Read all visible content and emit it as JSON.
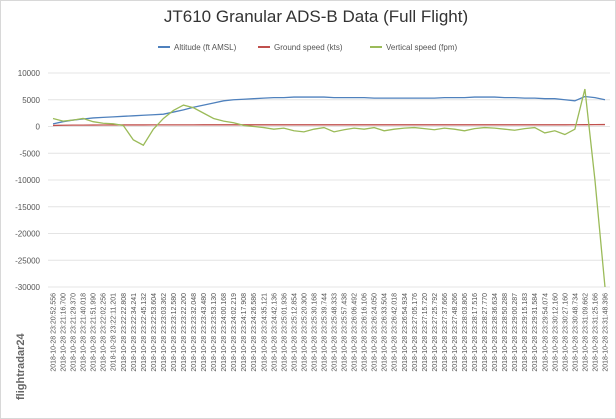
{
  "chart_data": {
    "type": "line",
    "title": "JT610 Granular ADS-B Data (Full Flight)",
    "watermark": "flightradar24",
    "categories": [
      "2018-10-28 23:20:52.556",
      "2018-10-28 23:21:16.700",
      "2018-10-28 23:21:29.370",
      "2018-10-28 23:21:40.018",
      "2018-10-28 23:21:51.990",
      "2018-10-28 23:22:02.256",
      "2018-10-28 23:22:11.201",
      "2018-10-28 23:22:22.808",
      "2018-10-28 23:22:34.241",
      "2018-10-28 23:22:45.132",
      "2018-10-28 23:22:53.604",
      "2018-10-28 23:23:03.362",
      "2018-10-28 23:23:12.580",
      "2018-10-28 23:23:22.200",
      "2018-10-28 23:23:32.048",
      "2018-10-28 23:23:43.480",
      "2018-10-28 23:23:53.130",
      "2018-10-28 23:24:00.168",
      "2018-10-28 23:24:02.219",
      "2018-10-28 23:24:17.908",
      "2018-10-28 23:24:26.586",
      "2018-10-28 23:24:35.121",
      "2018-10-28 23:24:42.136",
      "2018-10-28 23:25:01.936",
      "2018-10-28 23:25:12.854",
      "2018-10-28 23:25:20.300",
      "2018-10-28 23:25:30.168",
      "2018-10-28 23:25:39.744",
      "2018-10-28 23:25:48.333",
      "2018-10-28 23:25:57.438",
      "2018-10-28 23:26:06.492",
      "2018-10-28 23:26:16.106",
      "2018-10-28 23:26:24.050",
      "2018-10-28 23:26:33.504",
      "2018-10-28 23:26:42.018",
      "2018-10-28 23:26:54.934",
      "2018-10-28 23:27:05.176",
      "2018-10-28 23:27:15.720",
      "2018-10-28 23:27:25.792",
      "2018-10-28 23:27:37.666",
      "2018-10-28 23:27:48.266",
      "2018-10-28 23:28:03.806",
      "2018-10-28 23:28:17.516",
      "2018-10-28 23:28:27.770",
      "2018-10-28 23:28:36.634",
      "2018-10-28 23:28:50.288",
      "2018-10-28 23:29:00.287",
      "2018-10-28 23:29:15.183",
      "2018-10-28 23:29:31.584",
      "2018-10-28 23:29:54.074",
      "2018-10-28 23:30:12.160",
      "2018-10-28 23:30:27.160",
      "2018-10-28 23:30:48.734",
      "2018-10-28 23:31:09.662",
      "2018-10-28 23:31:25.166",
      "2018-10-28 23:31:48.396"
    ],
    "series": [
      {
        "name": "Altitude (ft AMSL)",
        "color": "#4f81bd",
        "values": [
          500,
          900,
          1200,
          1400,
          1600,
          1700,
          1800,
          1900,
          2000,
          2100,
          2200,
          2300,
          2700,
          3100,
          3600,
          4000,
          4400,
          4800,
          5000,
          5100,
          5200,
          5300,
          5400,
          5400,
          5500,
          5500,
          5500,
          5500,
          5400,
          5400,
          5400,
          5400,
          5300,
          5300,
          5300,
          5300,
          5300,
          5300,
          5300,
          5400,
          5400,
          5400,
          5500,
          5500,
          5500,
          5400,
          5400,
          5300,
          5300,
          5200,
          5200,
          5000,
          4800,
          5600,
          5400,
          5000
        ]
      },
      {
        "name": "Ground speed (kts)",
        "color": "#c0504d",
        "values": [
          200,
          230,
          250,
          260,
          270,
          280,
          290,
          290,
          290,
          290,
          300,
          300,
          300,
          310,
          310,
          320,
          320,
          320,
          320,
          320,
          320,
          320,
          320,
          320,
          320,
          320,
          320,
          320,
          320,
          320,
          320,
          320,
          320,
          320,
          320,
          320,
          320,
          320,
          320,
          320,
          320,
          320,
          320,
          320,
          320,
          320,
          320,
          320,
          320,
          320,
          320,
          320,
          330,
          340,
          350,
          360
        ]
      },
      {
        "name": "Vertical speed (fpm)",
        "color": "#9bbb59",
        "values": [
          1500,
          1000,
          1200,
          1500,
          900,
          600,
          500,
          200,
          -2500,
          -3500,
          -500,
          1500,
          3000,
          4000,
          3500,
          2500,
          1500,
          1000,
          700,
          200,
          0,
          -200,
          -500,
          -300,
          -800,
          -1000,
          -500,
          -200,
          -1000,
          -600,
          -300,
          -500,
          -200,
          -800,
          -500,
          -300,
          -200,
          -400,
          -600,
          -300,
          -500,
          -800,
          -400,
          -200,
          -300,
          -500,
          -700,
          -400,
          -200,
          -1200,
          -800,
          -1500,
          -500,
          7000,
          -10000,
          -30000
        ]
      }
    ],
    "ylim": [
      -30000,
      10000
    ],
    "yticks": [
      -30000,
      -25000,
      -20000,
      -15000,
      -10000,
      -5000,
      0,
      5000,
      10000
    ],
    "grid": true,
    "legend": "top"
  }
}
